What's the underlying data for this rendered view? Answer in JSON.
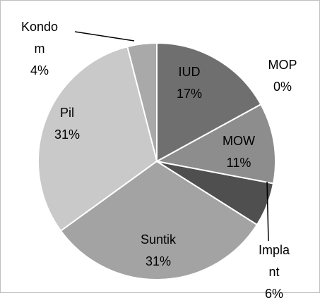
{
  "chart_data": {
    "type": "pie",
    "categories": [
      "IUD",
      "MOP",
      "MOW",
      "Implant",
      "Suntik",
      "Pil",
      "Kondom"
    ],
    "values": [
      17,
      0,
      11,
      6,
      31,
      31,
      4
    ],
    "value_labels": [
      "17%",
      "0%",
      "11%",
      "6%",
      "31%",
      "31%",
      "4%"
    ],
    "colors": [
      "#6f6f6f",
      "#7f7f7f",
      "#8d8d8d",
      "#4f4f4f",
      "#a3a3a3",
      "#c9c9c9",
      "#a9a9a9"
    ]
  }
}
